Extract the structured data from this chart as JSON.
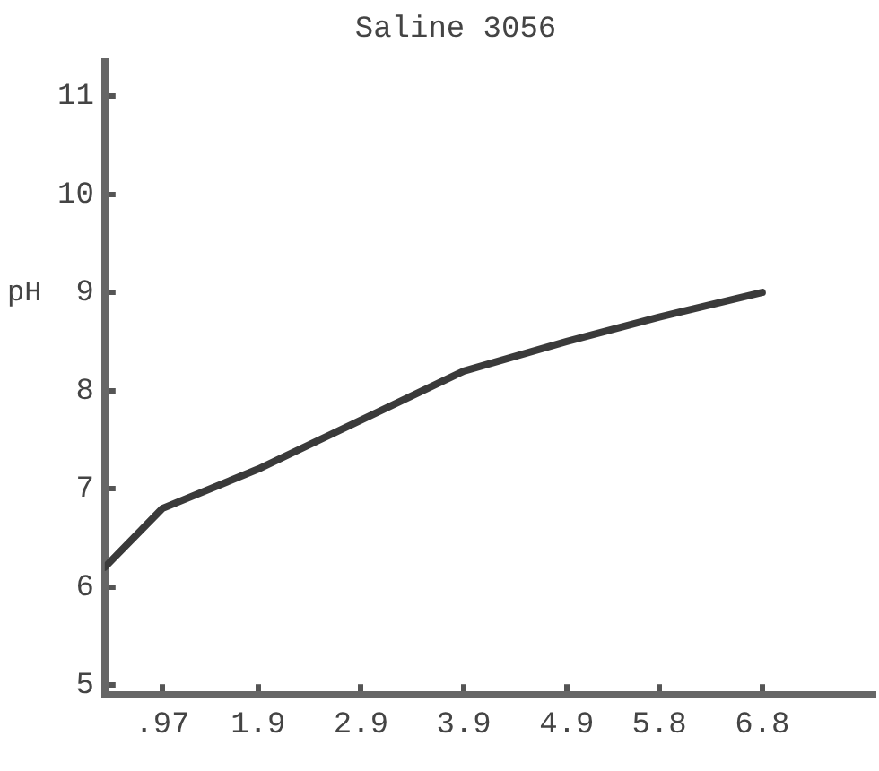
{
  "chart_data": {
    "type": "line",
    "title": "Saline 3056",
    "ylabel": "pH",
    "x": [
      0.41,
      0.97,
      1.9,
      2.9,
      3.9,
      4.9,
      5.8,
      6.8
    ],
    "series": [
      {
        "color": "#3a3a3a",
        "values": [
          6.2,
          6.8,
          7.2,
          7.7,
          8.2,
          8.5,
          8.75,
          9.0
        ]
      }
    ],
    "xlim": [
      0.41,
      7.9
    ],
    "xticks": [
      {
        "value": 0.97,
        "label": ".97"
      },
      1.9,
      2.9,
      3.9,
      4.9,
      5.8,
      6.8
    ],
    "ylim": [
      4.9,
      11.35
    ],
    "yticks": [
      5,
      6,
      7,
      8,
      9,
      10,
      11
    ],
    "grid": false,
    "legend": false,
    "marker": "none",
    "line_style": "solid"
  }
}
